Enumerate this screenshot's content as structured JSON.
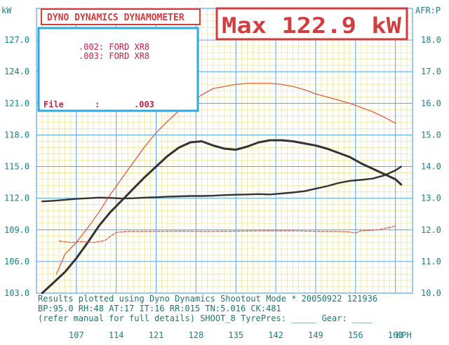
{
  "chart_data": {
    "type": "line",
    "title": "DYNO DYNAMICS DYNAMOMETER",
    "max_label": "Max 122.9 kW",
    "legend": {
      "entries": [
        ".002: FORD XR8",
        ".003: FORD XR8"
      ],
      "file_label": "File",
      "file_colon": ":",
      "file_value": ".003"
    },
    "left_axis_unit": "kW",
    "right_axis_unit": "AFR:P",
    "x_unit": "KPH",
    "xlim": [
      100,
      166
    ],
    "ylim_left": [
      103,
      130
    ],
    "ylim_right": [
      10,
      19
    ],
    "x_ticks": [
      "107",
      "114",
      "121",
      "128",
      "135",
      "142",
      "149",
      "156",
      "163"
    ],
    "y_ticks_left": [
      "103.0",
      "106.0",
      "109.0",
      "112.0",
      "115.0",
      "118.0",
      "121.0",
      "124.0",
      "127.0"
    ],
    "y_ticks_right": [
      "10.0",
      "11.0",
      "12.0",
      "13.0",
      "14.0",
      "15.0",
      "16.0",
      "17.0",
      "18.0"
    ],
    "grid": true,
    "colors": {
      "background": "#ffffff",
      "grid_minor": "#ece59a",
      "grid_major": "#5aa8e8",
      "power_run": "#333333",
      "afr_run": "#333333",
      "power_run2": "#e05030",
      "afr_run2": "#e05030",
      "title_border": "#d23e40",
      "title_text": "#d23e40",
      "legend_border": "#2ea8e0",
      "legend_text": "#c0224a",
      "axis_text": "#1a8080",
      "footer_text": "#1a7a6a"
    },
    "series": [
      {
        "role": "power",
        "axis": "left",
        "style": "solid-thick",
        "x": [
          101.0,
          103.0,
          105.0,
          107.0,
          109.0,
          111.0,
          113.0,
          115.0,
          117.0,
          119.0,
          121.0,
          123.0,
          125.0,
          127.0,
          129.0,
          131.0,
          133.0,
          135.0,
          137.0,
          139.0,
          141.0,
          143.0,
          145.0,
          147.0,
          149.0,
          151.0,
          153.0,
          155.0,
          157.0,
          159.0,
          161.0,
          163.0,
          164.0
        ],
        "y": [
          103.0,
          104.0,
          105.0,
          106.3,
          107.8,
          109.4,
          110.7,
          111.8,
          112.9,
          114.0,
          115.0,
          116.0,
          116.8,
          117.3,
          117.4,
          117.0,
          116.7,
          116.6,
          116.9,
          117.3,
          117.5,
          117.5,
          117.4,
          117.2,
          117.0,
          116.7,
          116.3,
          115.9,
          115.3,
          114.8,
          114.3,
          113.8,
          113.3
        ]
      },
      {
        "role": "afr",
        "axis": "right",
        "style": "solid-thick",
        "x": [
          101.0,
          103.0,
          105.0,
          107.0,
          109.0,
          111.0,
          113.0,
          115.0,
          117.0,
          119.0,
          121.0,
          123.0,
          125.0,
          127.0,
          129.0,
          131.0,
          133.0,
          135.0,
          137.0,
          139.0,
          141.0,
          143.0,
          145.0,
          147.0,
          149.0,
          151.0,
          153.0,
          155.0,
          157.0,
          159.0,
          161.0,
          163.0,
          164.0
        ],
        "y": [
          12.9,
          12.92,
          12.95,
          12.98,
          13.0,
          13.02,
          13.01,
          12.99,
          13.0,
          13.02,
          13.03,
          13.05,
          13.06,
          13.07,
          13.07,
          13.08,
          13.1,
          13.11,
          13.12,
          13.13,
          13.12,
          13.15,
          13.18,
          13.22,
          13.3,
          13.38,
          13.48,
          13.55,
          13.58,
          13.62,
          13.72,
          13.88,
          14.0
        ]
      },
      {
        "role": "power",
        "axis": "left",
        "style": "solid-thin",
        "x": [
          103.5,
          105.0,
          107.0,
          109.0,
          111.0,
          113.0,
          115.0,
          117.0,
          119.0,
          121.0,
          123.0,
          125.0,
          127.0,
          129.0,
          131.0,
          133.0,
          135.0,
          137.0,
          139.0,
          141.0,
          143.0,
          145.0,
          147.0,
          149.0,
          151.0,
          153.0,
          155.0,
          157.0,
          159.0,
          161.0,
          163.0
        ],
        "y": [
          104.8,
          106.7,
          107.8,
          109.2,
          110.7,
          112.4,
          113.9,
          115.4,
          116.9,
          118.2,
          119.3,
          120.3,
          121.1,
          121.8,
          122.4,
          122.6,
          122.8,
          122.9,
          122.9,
          122.9,
          122.8,
          122.6,
          122.3,
          121.9,
          121.6,
          121.3,
          121.0,
          120.6,
          120.2,
          119.7,
          119.1
        ]
      },
      {
        "role": "afr",
        "axis": "right",
        "style": "dashed-thin",
        "x": [
          104.0,
          106.0,
          108.0,
          110.0,
          112.0,
          113.0,
          114.0,
          116.0,
          120.0,
          125.0,
          130.0,
          135.0,
          140.0,
          145.0,
          150.0,
          153.0,
          155.0,
          156.0,
          157.0,
          160.0,
          163.0
        ],
        "y": [
          11.65,
          11.6,
          11.63,
          11.6,
          11.66,
          11.8,
          11.92,
          11.95,
          11.95,
          11.96,
          11.95,
          11.96,
          11.97,
          11.97,
          11.95,
          11.95,
          11.93,
          11.9,
          11.97,
          12.0,
          12.12
        ]
      }
    ]
  },
  "footer": {
    "line1": "Results plotted using Dyno Dynamics Shootout Mode * 20050922 121936",
    "line2": "BP:95.0   RH:48  AT:17  IT:16   RR:015  TN:5.016  CK:481",
    "line3": "(refer manual for full details) SHOOT_8   TyrePres: _____ Gear: ____"
  }
}
